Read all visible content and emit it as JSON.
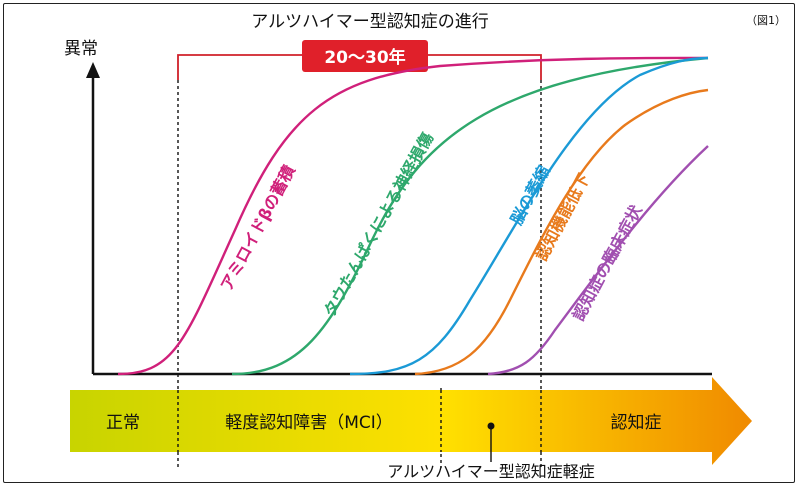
{
  "title": "アルツハイマー型認知症の進行",
  "figure_label": "（図1）",
  "y_axis_label": "異常",
  "duration_badge": "20〜30年",
  "curves": [
    {
      "name": "amyloid",
      "label": "アミロイドβの蓄積",
      "color": "#d0207a"
    },
    {
      "name": "tau",
      "label": "タウたんぱくによる神経損傷",
      "color": "#2ea86c"
    },
    {
      "name": "atrophy",
      "label": "脳の萎縮",
      "color": "#1b9ad6"
    },
    {
      "name": "cognitive",
      "label": "認知機能低下",
      "color": "#e87a1c"
    },
    {
      "name": "clinical",
      "label": "認知症の臨床症状",
      "color": "#a14fb0"
    }
  ],
  "stages": [
    {
      "label": "正常"
    },
    {
      "label": "軽度認知障害（MCI）"
    },
    {
      "label": "認知症"
    }
  ],
  "mild_stage_label": "アルツハイマー型認知症軽症",
  "colors": {
    "badge": "#e0202a",
    "bracket": "#d0202a",
    "arrow_start": "#c8d400",
    "arrow_mid": "#ffe000",
    "arrow_end": "#f08a00"
  }
}
